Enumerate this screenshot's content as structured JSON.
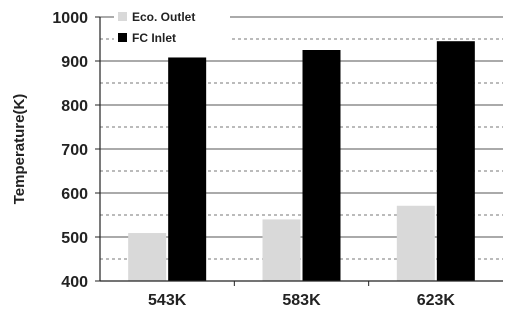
{
  "chart_data": {
    "type": "bar",
    "categories": [
      "543K",
      "583K",
      "623K"
    ],
    "series": [
      {
        "name": "Eco. Outlet",
        "color": "#d9d9d9",
        "values": [
          509,
          540,
          571
        ]
      },
      {
        "name": "FC Inlet",
        "color": "#000000",
        "values": [
          908,
          925,
          945
        ]
      }
    ],
    "ylabel": "Temperature(K)",
    "ylim": [
      400,
      1000
    ],
    "yticks": [
      400,
      500,
      600,
      700,
      800,
      900,
      1000
    ],
    "grid": {
      "solid_every": 100,
      "dashed_every": 50
    },
    "legend_position": "top-left"
  }
}
